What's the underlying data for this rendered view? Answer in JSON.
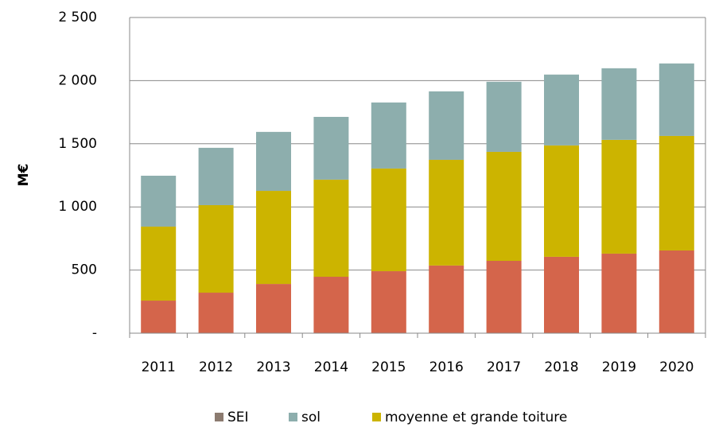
{
  "chart_data": {
    "type": "stacked_bar",
    "y_label": "M€",
    "categories": [
      "2011",
      "2012",
      "2013",
      "2014",
      "2015",
      "2016",
      "2017",
      "2018",
      "2019",
      "2020"
    ],
    "series": [
      {
        "color": "#d4654b",
        "values": [
          258,
          321,
          390,
          447,
          491,
          536,
          573,
          605,
          630,
          655
        ]
      },
      {
        "name": "moyenne et grande toiture",
        "color": "#ccb400",
        "values": [
          586,
          693,
          737,
          769,
          813,
          837,
          863,
          882,
          901,
          907
        ]
      },
      {
        "name": "SEI",
        "color": "#8c7b70",
        "values": [
          0,
          0,
          0,
          0,
          0,
          0,
          0,
          0,
          0,
          0
        ]
      },
      {
        "name": "sol",
        "color": "#8daead",
        "values": [
          403,
          454,
          467,
          497,
          523,
          542,
          555,
          561,
          567,
          574
        ]
      }
    ],
    "legend_order": [
      2,
      3,
      1
    ],
    "ylim": [
      0,
      2500
    ],
    "yticks": [
      {
        "value": 0,
        "label": "-"
      },
      500,
      {
        "value": 1000,
        "label": "1 000"
      },
      {
        "value": 1500,
        "label": "1 500"
      },
      {
        "value": 2000,
        "label": "2 000"
      },
      {
        "value": 2500,
        "label": "2 500"
      }
    ],
    "grid": true
  }
}
